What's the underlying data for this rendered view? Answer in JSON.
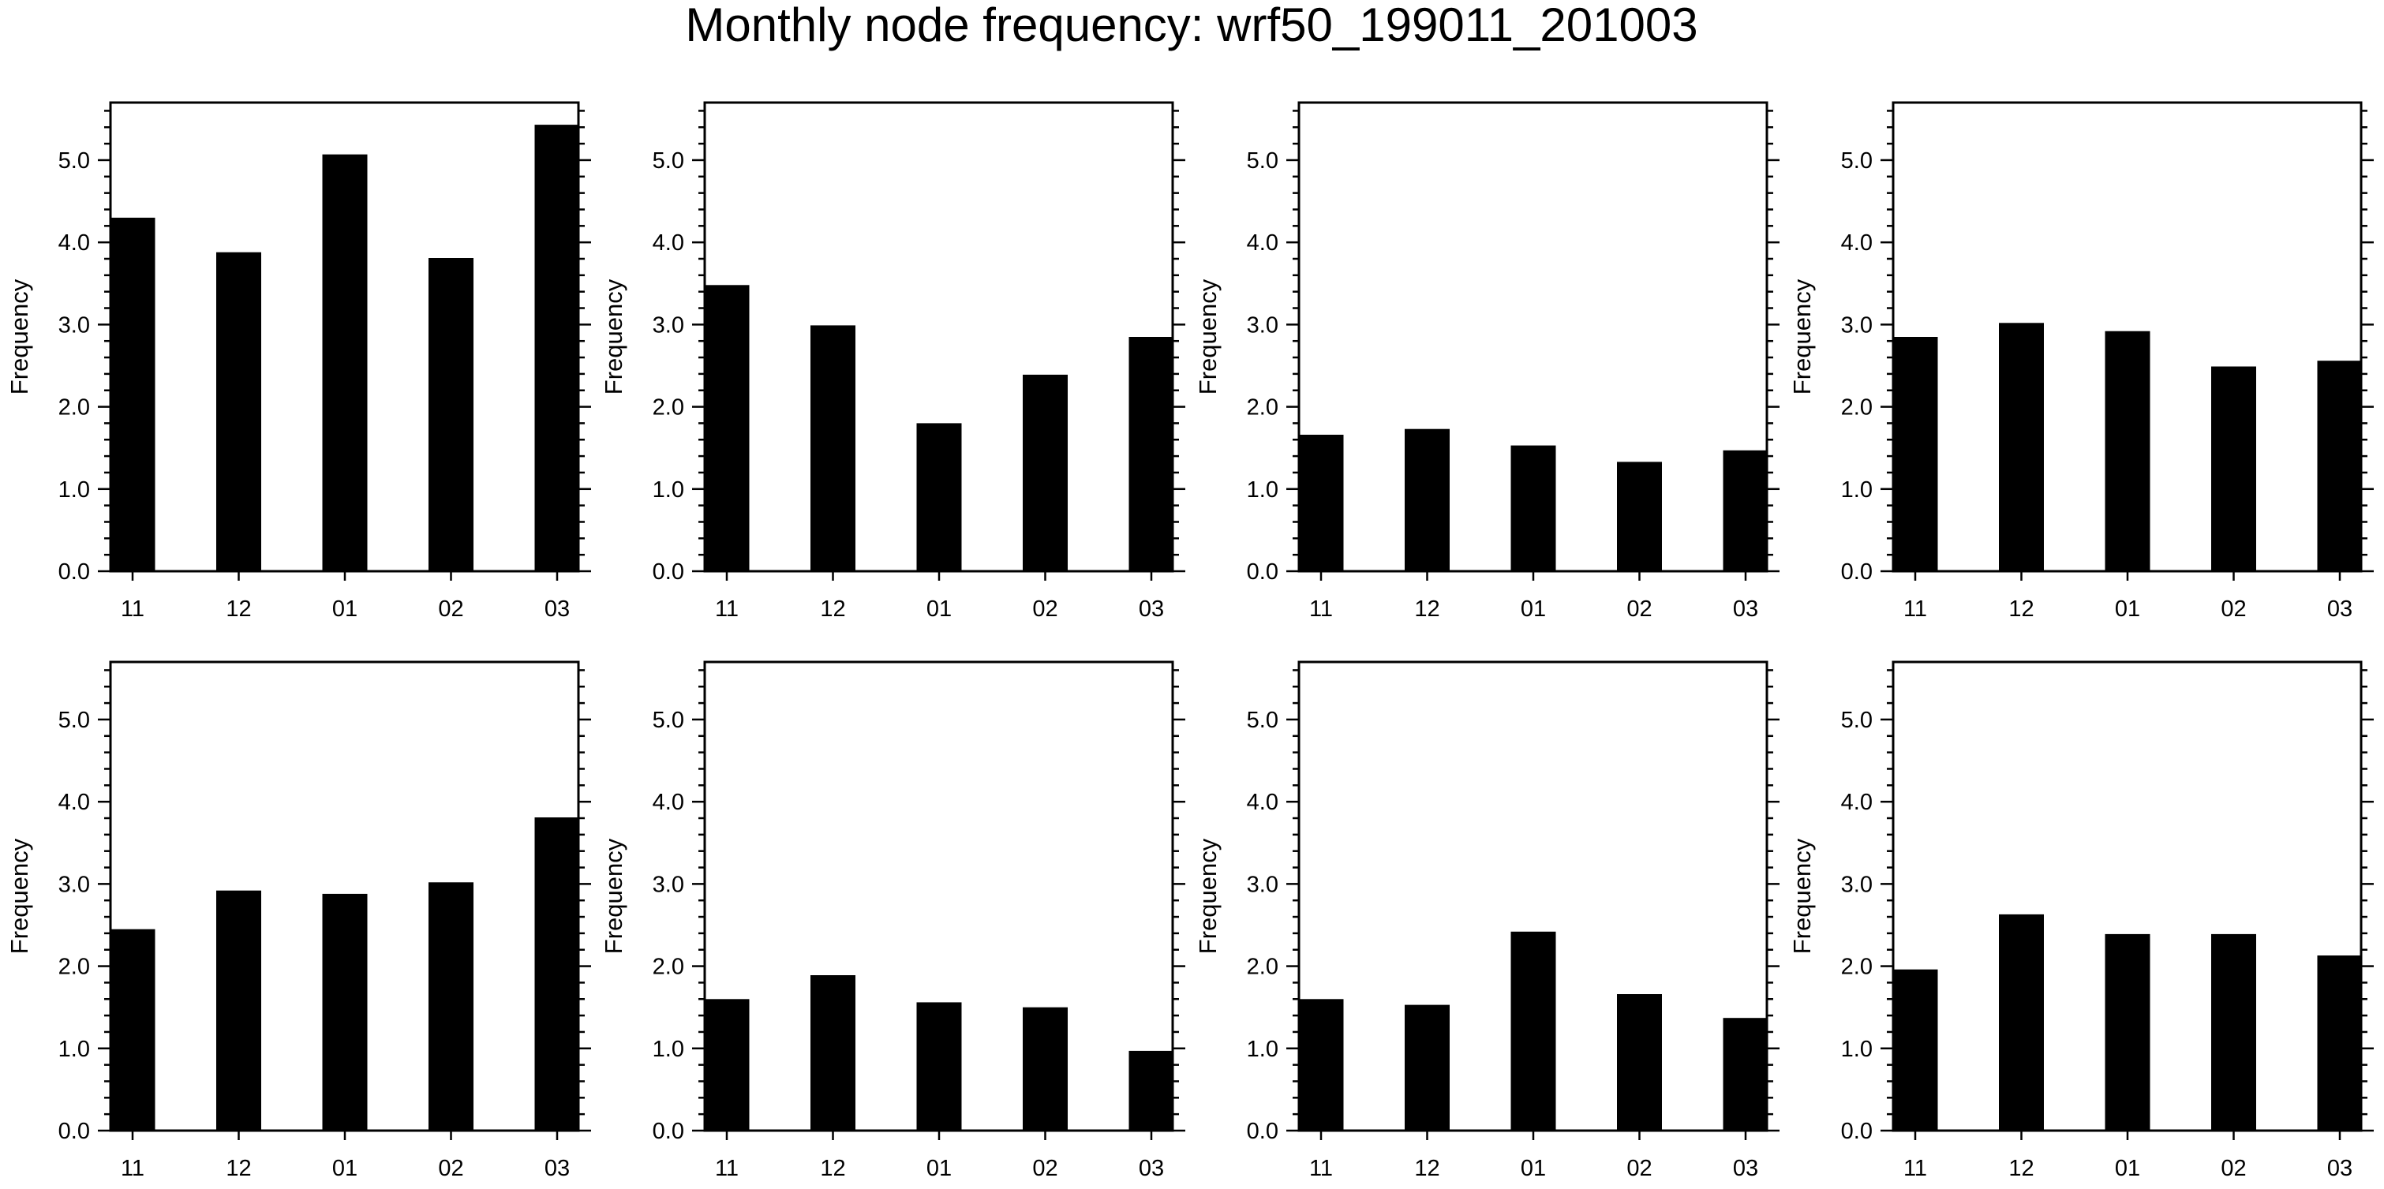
{
  "title": "Monthly node frequency: wrf50_199011_201003",
  "colors": {
    "bar": "#000000",
    "axis": "#000000",
    "background": "#ffffff"
  },
  "chart_data": [
    {
      "type": "bar",
      "categories": [
        "11",
        "12",
        "01",
        "02",
        "03"
      ],
      "values": [
        4.3,
        3.88,
        5.07,
        3.81,
        5.43
      ],
      "ylabel": "Frequency",
      "ylim": [
        0,
        5.7
      ],
      "yticks": [
        "0.0",
        "1.0",
        "2.0",
        "3.0",
        "4.0",
        "5.0"
      ],
      "grid": false
    },
    {
      "type": "bar",
      "categories": [
        "11",
        "12",
        "01",
        "02",
        "03"
      ],
      "values": [
        3.48,
        2.99,
        1.8,
        2.39,
        2.85
      ],
      "ylabel": "Frequency",
      "ylim": [
        0,
        5.7
      ],
      "yticks": [
        "0.0",
        "1.0",
        "2.0",
        "3.0",
        "4.0",
        "5.0"
      ],
      "grid": false
    },
    {
      "type": "bar",
      "categories": [
        "11",
        "12",
        "01",
        "02",
        "03"
      ],
      "values": [
        1.66,
        1.73,
        1.53,
        1.33,
        1.47
      ],
      "ylabel": "Frequency",
      "ylim": [
        0,
        5.7
      ],
      "yticks": [
        "0.0",
        "1.0",
        "2.0",
        "3.0",
        "4.0",
        "5.0"
      ],
      "grid": false
    },
    {
      "type": "bar",
      "categories": [
        "11",
        "12",
        "01",
        "02",
        "03"
      ],
      "values": [
        2.85,
        3.02,
        2.92,
        2.49,
        2.56
      ],
      "ylabel": "Frequency",
      "ylim": [
        0,
        5.7
      ],
      "yticks": [
        "0.0",
        "1.0",
        "2.0",
        "3.0",
        "4.0",
        "5.0"
      ],
      "grid": false
    },
    {
      "type": "bar",
      "categories": [
        "11",
        "12",
        "01",
        "02",
        "03"
      ],
      "values": [
        2.45,
        2.92,
        2.88,
        3.02,
        3.81
      ],
      "ylabel": "Frequency",
      "ylim": [
        0,
        5.7
      ],
      "yticks": [
        "0.0",
        "1.0",
        "2.0",
        "3.0",
        "4.0",
        "5.0"
      ],
      "grid": false
    },
    {
      "type": "bar",
      "categories": [
        "11",
        "12",
        "01",
        "02",
        "03"
      ],
      "values": [
        1.6,
        1.89,
        1.56,
        1.5,
        0.97
      ],
      "ylabel": "Frequency",
      "ylim": [
        0,
        5.7
      ],
      "yticks": [
        "0.0",
        "1.0",
        "2.0",
        "3.0",
        "4.0",
        "5.0"
      ],
      "grid": false
    },
    {
      "type": "bar",
      "categories": [
        "11",
        "12",
        "01",
        "02",
        "03"
      ],
      "values": [
        1.6,
        1.53,
        2.42,
        1.66,
        1.37
      ],
      "ylabel": "Frequency",
      "ylim": [
        0,
        5.7
      ],
      "yticks": [
        "0.0",
        "1.0",
        "2.0",
        "3.0",
        "4.0",
        "5.0"
      ],
      "grid": false
    },
    {
      "type": "bar",
      "categories": [
        "11",
        "12",
        "01",
        "02",
        "03"
      ],
      "values": [
        1.96,
        2.63,
        2.39,
        2.39,
        2.13
      ],
      "ylabel": "Frequency",
      "ylim": [
        0,
        5.7
      ],
      "yticks": [
        "0.0",
        "1.0",
        "2.0",
        "3.0",
        "4.0",
        "5.0"
      ],
      "grid": false
    }
  ]
}
